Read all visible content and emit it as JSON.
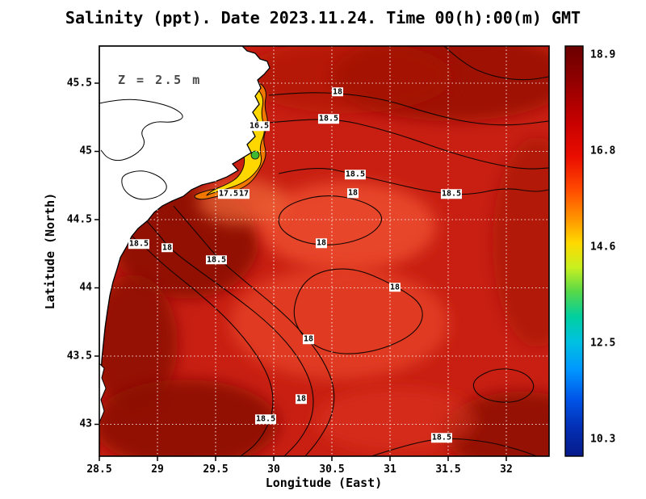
{
  "title": "Salinity (ppt). Date 2023.11.24. Time 00(h):00(m) GMT",
  "annotation": "Z = 2.5 m",
  "axes": {
    "xlabel": "Longitude (East)",
    "ylabel": "Latitude (North)"
  },
  "chart_data": {
    "type": "heatmap",
    "variable": "Salinity",
    "units": "ppt",
    "date": "2023.11.24",
    "time": "00(h):00(m) GMT",
    "depth_label": "Z = 2.5 m",
    "xlabel": "Longitude (East)",
    "ylabel": "Latitude (North)",
    "xlim": [
      28.5,
      32.368
    ],
    "ylim": [
      42.766,
      45.772
    ],
    "value_range": [
      10.3,
      18.9
    ],
    "grid": true,
    "x_ticks": [
      28.5,
      29,
      29.5,
      30,
      30.5,
      31,
      31.5,
      32
    ],
    "x_tick_labels": [
      "28.5",
      "29",
      "29.5",
      "30",
      "30.5",
      "31",
      "31.5",
      "32"
    ],
    "y_ticks": [
      43,
      43.5,
      44,
      44.5,
      45,
      45.5
    ],
    "y_tick_labels": [
      "43",
      "43.5",
      "44",
      "44.5",
      "45",
      "45.5"
    ],
    "base_color": "#c81f12",
    "land_color": "#ffffff",
    "contour_color": "#140600",
    "colorbar": {
      "position": "right",
      "value_ticks": [
        18.9,
        16.8,
        14.6,
        12.5,
        10.3
      ],
      "tick_labels": [
        "18.9",
        "16.8",
        "14.6",
        "12.5",
        "10.3"
      ],
      "stops": [
        {
          "offset": 0,
          "color": "#6b0000"
        },
        {
          "offset": 0.08,
          "color": "#8f0000"
        },
        {
          "offset": 0.18,
          "color": "#c40000"
        },
        {
          "offset": 0.27,
          "color": "#ea0d00"
        },
        {
          "offset": 0.35,
          "color": "#ff4a00"
        },
        {
          "offset": 0.42,
          "color": "#ff9400"
        },
        {
          "offset": 0.48,
          "color": "#ffd900"
        },
        {
          "offset": 0.54,
          "color": "#c8f020"
        },
        {
          "offset": 0.6,
          "color": "#55d84a"
        },
        {
          "offset": 0.66,
          "color": "#00cfa0"
        },
        {
          "offset": 0.72,
          "color": "#00c2e0"
        },
        {
          "offset": 0.79,
          "color": "#0096ff"
        },
        {
          "offset": 0.86,
          "color": "#0055e8"
        },
        {
          "offset": 0.93,
          "color": "#032fb4"
        },
        {
          "offset": 1,
          "color": "#071a8a"
        }
      ]
    },
    "field_blobs": [
      {
        "lon": 29.243,
        "lat": 44.334,
        "rx": 0.625,
        "ry": 0.414,
        "color": "#8c0a06",
        "opacity": 0.9
      },
      {
        "lon": 28.792,
        "lat": 43.594,
        "rx": 0.382,
        "ry": 0.503,
        "color": "#8c0a06",
        "opacity": 0.85
      },
      {
        "lon": 29.243,
        "lat": 43.003,
        "rx": 0.799,
        "ry": 0.325,
        "color": "#8c0a06",
        "opacity": 0.9
      },
      {
        "lon": 31.535,
        "lat": 45.547,
        "rx": 1.042,
        "ry": 0.325,
        "color": "#960c06",
        "opacity": 0.85
      },
      {
        "lon": 32.264,
        "lat": 44.334,
        "rx": 0.382,
        "ry": 0.769,
        "color": "#a01008",
        "opacity": 0.55
      },
      {
        "lon": 32.125,
        "lat": 42.944,
        "rx": 0.66,
        "ry": 0.296,
        "color": "#8c0a06",
        "opacity": 0.85
      },
      {
        "lon": 30.632,
        "lat": 45.547,
        "rx": 0.903,
        "ry": 0.266,
        "color": "#aa1208",
        "opacity": 0.6
      },
      {
        "lon": 30.632,
        "lat": 44.452,
        "rx": 0.764,
        "ry": 0.325,
        "color": "#ef4f30",
        "opacity": 0.8
      },
      {
        "lon": 30.563,
        "lat": 43.742,
        "rx": 0.938,
        "ry": 0.414,
        "color": "#e84428",
        "opacity": 0.75
      },
      {
        "lon": 29.729,
        "lat": 44.63,
        "rx": 0.382,
        "ry": 0.166,
        "color": "#f06a38",
        "opacity": 0.7
      },
      {
        "lon": 31.049,
        "lat": 43.032,
        "rx": 0.694,
        "ry": 0.237,
        "color": "#e03a22",
        "opacity": 0.5
      }
    ],
    "plume_patches": [
      {
        "color": "#f07800",
        "points": [
          [
            29.861,
            45.518
          ],
          [
            29.944,
            45.447
          ],
          [
            29.917,
            45.328
          ],
          [
            29.958,
            45.21
          ],
          [
            29.903,
            45.092
          ],
          [
            29.944,
            44.973
          ],
          [
            29.875,
            44.855
          ],
          [
            29.806,
            44.772
          ],
          [
            29.694,
            44.713
          ],
          [
            29.521,
            44.671
          ],
          [
            29.368,
            44.642
          ],
          [
            29.299,
            44.671
          ],
          [
            29.396,
            44.707
          ],
          [
            29.528,
            44.73
          ],
          [
            29.653,
            44.772
          ],
          [
            29.736,
            44.849
          ],
          [
            29.792,
            44.949
          ],
          [
            29.75,
            45.068
          ],
          [
            29.806,
            45.186
          ],
          [
            29.764,
            45.305
          ],
          [
            29.819,
            45.423
          ]
        ]
      },
      {
        "color": "#ffd700",
        "points": [
          [
            29.854,
            45.47
          ],
          [
            29.917,
            45.387
          ],
          [
            29.889,
            45.269
          ],
          [
            29.931,
            45.151
          ],
          [
            29.875,
            45.032
          ],
          [
            29.903,
            44.914
          ],
          [
            29.819,
            44.819
          ],
          [
            29.715,
            44.76
          ],
          [
            29.576,
            44.719
          ],
          [
            29.451,
            44.689
          ],
          [
            29.41,
            44.671
          ],
          [
            29.479,
            44.719
          ],
          [
            29.604,
            44.76
          ],
          [
            29.701,
            44.813
          ],
          [
            29.757,
            44.914
          ],
          [
            29.729,
            45.032
          ],
          [
            29.778,
            45.151
          ],
          [
            29.743,
            45.269
          ],
          [
            29.799,
            45.387
          ]
        ]
      }
    ],
    "green_spots": [
      {
        "lon": 29.819,
        "lat": 45.352,
        "r": 6
      },
      {
        "lon": 29.785,
        "lat": 45.145,
        "r": 5
      },
      {
        "lon": 29.84,
        "lat": 44.973,
        "r": 5
      }
    ],
    "markers": {
      "square": {
        "lon": 29.688,
        "lat": 45.52,
        "color": "#e31a1c"
      },
      "dots": [
        {
          "lon": 29.764,
          "lat": 45.352
        },
        {
          "lon": 29.736,
          "lat": 45.157
        }
      ]
    },
    "coastline": [
      [
        28.5,
        45.772
      ],
      [
        29.729,
        45.772
      ],
      [
        29.771,
        45.736
      ],
      [
        29.84,
        45.719
      ],
      [
        29.882,
        45.677
      ],
      [
        29.944,
        45.66
      ],
      [
        29.965,
        45.612
      ],
      [
        29.917,
        45.565
      ],
      [
        29.861,
        45.523
      ],
      [
        29.889,
        45.464
      ],
      [
        29.84,
        45.405
      ],
      [
        29.875,
        45.346
      ],
      [
        29.819,
        45.287
      ],
      [
        29.861,
        45.228
      ],
      [
        29.806,
        45.168
      ],
      [
        29.84,
        45.109
      ],
      [
        29.771,
        45.05
      ],
      [
        29.806,
        44.991
      ],
      [
        29.715,
        44.943
      ],
      [
        29.646,
        44.908
      ],
      [
        29.694,
        44.861
      ],
      [
        29.597,
        44.813
      ],
      [
        29.493,
        44.778
      ],
      [
        29.382,
        44.754
      ],
      [
        29.292,
        44.719
      ],
      [
        29.222,
        44.671
      ],
      [
        29.125,
        44.636
      ],
      [
        29.042,
        44.6
      ],
      [
        28.972,
        44.553
      ],
      [
        28.917,
        44.494
      ],
      [
        28.833,
        44.435
      ],
      [
        28.778,
        44.376
      ],
      [
        28.736,
        44.304
      ],
      [
        28.681,
        44.222
      ],
      [
        28.653,
        44.139
      ],
      [
        28.618,
        44.044
      ],
      [
        28.59,
        43.943
      ],
      [
        28.569,
        43.825
      ],
      [
        28.549,
        43.707
      ],
      [
        28.535,
        43.588
      ],
      [
        28.521,
        43.47
      ],
      [
        28.514,
        43.352
      ],
      [
        28.5,
        43.269
      ]
    ],
    "coast_steps": [
      [
        28.5,
        43.446
      ],
      [
        28.542,
        43.411
      ],
      [
        28.521,
        43.34
      ],
      [
        28.556,
        43.263
      ],
      [
        28.514,
        43.18
      ],
      [
        28.542,
        43.097
      ],
      [
        28.507,
        43.026
      ],
      [
        28.5,
        43.026
      ]
    ],
    "lagoons": [
      {
        "closed": false,
        "points": [
          [
            28.5,
            45.352
          ],
          [
            28.688,
            45.387
          ],
          [
            28.931,
            45.37
          ],
          [
            29.139,
            45.322
          ],
          [
            29.243,
            45.251
          ],
          [
            29.132,
            45.21
          ],
          [
            28.965,
            45.222
          ],
          [
            28.847,
            45.151
          ],
          [
            28.903,
            45.056
          ],
          [
            28.813,
            44.973
          ],
          [
            28.674,
            44.926
          ],
          [
            28.569,
            44.949
          ],
          [
            28.514,
            45.009
          ]
        ]
      },
      {
        "closed": true,
        "points": [
          [
            28.701,
            44.831
          ],
          [
            28.868,
            44.867
          ],
          [
            29.035,
            44.813
          ],
          [
            29.097,
            44.73
          ],
          [
            29.0,
            44.66
          ],
          [
            28.847,
            44.642
          ],
          [
            28.736,
            44.689
          ],
          [
            28.688,
            44.76
          ]
        ]
      }
    ],
    "contours": [
      {
        "closed": false,
        "points": [
          [
            29.958,
            45.411
          ],
          [
            30.25,
            45.435
          ],
          [
            30.632,
            45.423
          ],
          [
            30.979,
            45.376
          ],
          [
            31.326,
            45.281
          ],
          [
            31.674,
            45.21
          ],
          [
            32.021,
            45.186
          ],
          [
            32.368,
            45.222
          ]
        ]
      },
      {
        "closed": false,
        "points": [
          [
            29.958,
            45.21
          ],
          [
            30.25,
            45.234
          ],
          [
            30.563,
            45.234
          ],
          [
            30.875,
            45.174
          ],
          [
            31.188,
            45.092
          ],
          [
            31.5,
            44.997
          ],
          [
            31.847,
            44.914
          ],
          [
            32.16,
            44.867
          ],
          [
            32.368,
            44.879
          ]
        ]
      },
      {
        "closed": false,
        "points": [
          [
            30.042,
            44.837
          ],
          [
            30.354,
            44.896
          ],
          [
            30.701,
            44.831
          ],
          [
            31.049,
            44.76
          ],
          [
            31.361,
            44.701
          ],
          [
            31.674,
            44.677
          ],
          [
            31.986,
            44.736
          ],
          [
            32.243,
            44.701
          ],
          [
            32.368,
            44.719
          ]
        ]
      },
      {
        "closed": true,
        "points": [
          [
            30.076,
            44.6
          ],
          [
            30.424,
            44.689
          ],
          [
            30.771,
            44.642
          ],
          [
            30.965,
            44.523
          ],
          [
            30.84,
            44.381
          ],
          [
            30.528,
            44.304
          ],
          [
            30.215,
            44.334
          ],
          [
            30.021,
            44.452
          ]
        ]
      },
      {
        "closed": false,
        "points": [
          [
            28.535,
            44.6
          ],
          [
            28.757,
            44.393
          ],
          [
            28.861,
            44.322
          ],
          [
            29.069,
            44.156
          ],
          [
            29.347,
            43.967
          ],
          [
            29.625,
            43.754
          ],
          [
            29.854,
            43.517
          ],
          [
            29.993,
            43.281
          ],
          [
            29.993,
            43.062
          ],
          [
            29.868,
            42.866
          ],
          [
            29.715,
            42.766
          ]
        ]
      },
      {
        "closed": false,
        "points": [
          [
            28.757,
            44.63
          ],
          [
            29.0,
            44.405
          ],
          [
            29.104,
            44.287
          ],
          [
            29.382,
            44.109
          ],
          [
            29.694,
            43.92
          ],
          [
            29.993,
            43.713
          ],
          [
            30.215,
            43.494
          ],
          [
            30.34,
            43.269
          ],
          [
            30.34,
            43.062
          ],
          [
            30.229,
            42.884
          ],
          [
            30.09,
            42.766
          ]
        ]
      },
      {
        "closed": false,
        "points": [
          [
            29.139,
            44.6
          ],
          [
            29.347,
            44.393
          ],
          [
            29.521,
            44.216
          ],
          [
            29.764,
            44.038
          ],
          [
            30.021,
            43.861
          ],
          [
            30.25,
            43.671
          ],
          [
            30.424,
            43.476
          ],
          [
            30.528,
            43.269
          ],
          [
            30.507,
            43.062
          ],
          [
            30.389,
            42.884
          ],
          [
            30.271,
            42.766
          ]
        ]
      },
      {
        "closed": true,
        "points": [
          [
            30.285,
            44.097
          ],
          [
            30.66,
            44.16
          ],
          [
            31.042,
            44.02
          ],
          [
            31.3,
            43.87
          ],
          [
            31.25,
            43.68
          ],
          [
            30.91,
            43.535
          ],
          [
            30.528,
            43.505
          ],
          [
            30.25,
            43.624
          ],
          [
            30.146,
            43.831
          ]
        ]
      },
      {
        "closed": false,
        "points": [
          [
            30.84,
            42.766
          ],
          [
            31.118,
            42.843
          ],
          [
            31.444,
            42.902
          ],
          [
            31.813,
            42.878
          ],
          [
            32.09,
            42.819
          ],
          [
            32.264,
            42.766
          ]
        ]
      },
      {
        "closed": true,
        "points": [
          [
            31.708,
            43.328
          ],
          [
            31.917,
            43.417
          ],
          [
            32.16,
            43.387
          ],
          [
            32.264,
            43.269
          ],
          [
            32.125,
            43.162
          ],
          [
            31.882,
            43.162
          ],
          [
            31.729,
            43.227
          ]
        ]
      },
      {
        "closed": false,
        "points": [
          [
            31.465,
            45.772
          ],
          [
            31.639,
            45.636
          ],
          [
            31.882,
            45.547
          ],
          [
            32.16,
            45.518
          ],
          [
            32.368,
            45.547
          ]
        ]
      }
    ],
    "contour_labels": [
      {
        "text": "18",
        "lon": 30.549,
        "lat": 45.435
      },
      {
        "text": "18.5",
        "lon": 30.472,
        "lat": 45.239
      },
      {
        "text": "16.5",
        "lon": 29.875,
        "lat": 45.186
      },
      {
        "text": "18.5",
        "lon": 30.701,
        "lat": 44.831
      },
      {
        "text": "18",
        "lon": 30.681,
        "lat": 44.695
      },
      {
        "text": "18.5",
        "lon": 31.528,
        "lat": 44.689
      },
      {
        "text": "17.5",
        "lon": 29.611,
        "lat": 44.689
      },
      {
        "text": "17",
        "lon": 29.743,
        "lat": 44.689
      },
      {
        "text": "18.5",
        "lon": 28.84,
        "lat": 44.322
      },
      {
        "text": "18",
        "lon": 29.083,
        "lat": 44.293
      },
      {
        "text": "18.5",
        "lon": 29.507,
        "lat": 44.204
      },
      {
        "text": "18",
        "lon": 30.41,
        "lat": 44.328
      },
      {
        "text": "18",
        "lon": 31.042,
        "lat": 44.003
      },
      {
        "text": "18",
        "lon": 30.299,
        "lat": 43.624
      },
      {
        "text": "18",
        "lon": 30.236,
        "lat": 43.186
      },
      {
        "text": "18.5",
        "lon": 29.931,
        "lat": 43.038
      },
      {
        "text": "18.5",
        "lon": 31.444,
        "lat": 42.902
      }
    ]
  }
}
